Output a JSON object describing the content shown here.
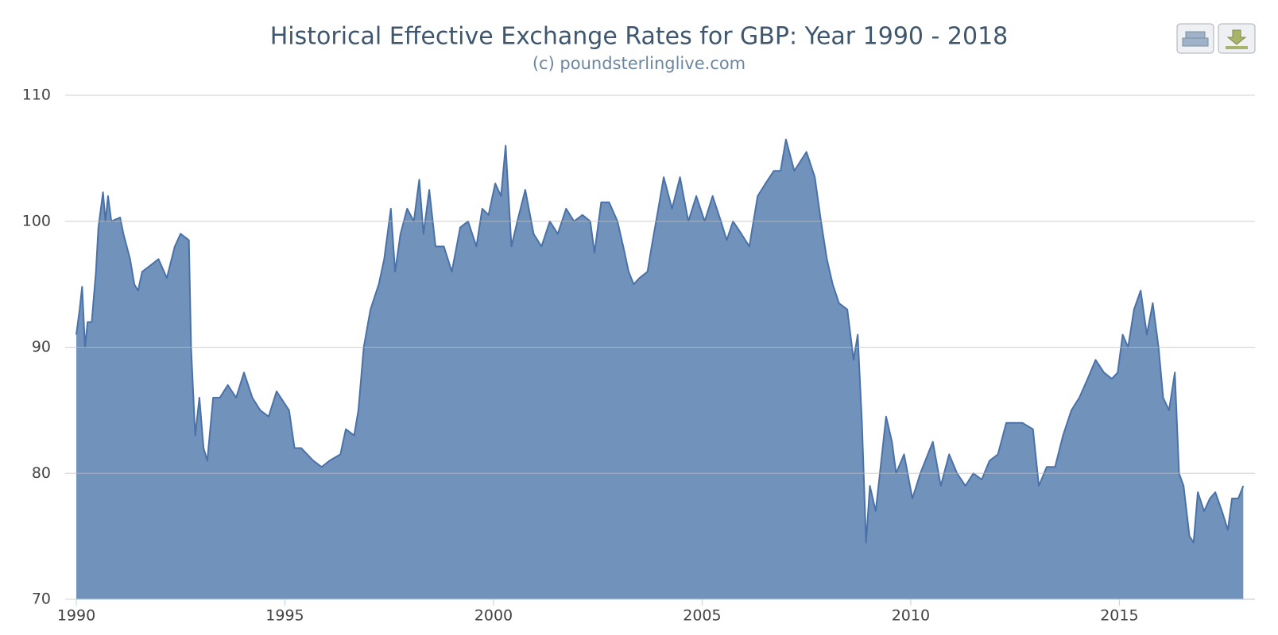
{
  "chart_data": {
    "type": "area",
    "title": "Historical Effective Exchange Rates for GBP: Year 1990 - 2018",
    "subtitle": "(c) poundsterlinglive.com",
    "color": "#7092bb",
    "line_color": "#4a72a8",
    "grid": true,
    "xlim": [
      1990,
      2018.25
    ],
    "xticks": [
      1990,
      1995,
      2000,
      2005,
      2010,
      2015
    ],
    "ylim": [
      70,
      110
    ],
    "yticks": [
      70,
      80,
      90,
      100,
      110
    ],
    "x": [
      1990.0,
      1990.08,
      1990.14,
      1990.21,
      1990.27,
      1990.37,
      1990.47,
      1990.53,
      1990.64,
      1990.7,
      1990.76,
      1990.84,
      1991.05,
      1991.13,
      1991.29,
      1991.39,
      1991.48,
      1991.58,
      1991.78,
      1991.97,
      1992.17,
      1992.36,
      1992.5,
      1992.7,
      1992.75,
      1992.85,
      1992.95,
      1993.05,
      1993.14,
      1993.28,
      1993.44,
      1993.63,
      1993.83,
      1994.02,
      1994.22,
      1994.41,
      1994.61,
      1994.8,
      1995.1,
      1995.23,
      1995.39,
      1995.68,
      1995.88,
      1996.07,
      1996.33,
      1996.46,
      1996.66,
      1996.76,
      1996.89,
      1997.05,
      1997.25,
      1997.38,
      1997.54,
      1997.64,
      1997.77,
      1997.93,
      1998.09,
      1998.22,
      1998.32,
      1998.46,
      1998.61,
      1998.81,
      1999.0,
      1999.2,
      1999.39,
      1999.59,
      1999.73,
      1999.88,
      2000.04,
      2000.18,
      2000.29,
      2000.43,
      2000.57,
      2000.76,
      2000.96,
      2001.15,
      2001.35,
      2001.54,
      2001.74,
      2001.93,
      2002.13,
      2002.32,
      2002.42,
      2002.58,
      2002.77,
      2002.97,
      2003.11,
      2003.24,
      2003.36,
      2003.5,
      2003.69,
      2003.79,
      2003.95,
      2004.08,
      2004.28,
      2004.47,
      2004.67,
      2004.86,
      2005.06,
      2005.25,
      2005.45,
      2005.59,
      2005.74,
      2005.94,
      2006.13,
      2006.33,
      2006.52,
      2006.72,
      2006.88,
      2007.01,
      2007.21,
      2007.5,
      2007.7,
      2007.85,
      2007.99,
      2008.13,
      2008.28,
      2008.48,
      2008.63,
      2008.73,
      2008.83,
      2008.93,
      2009.02,
      2009.16,
      2009.26,
      2009.41,
      2009.55,
      2009.65,
      2009.84,
      2010.04,
      2010.23,
      2010.53,
      2010.72,
      2010.92,
      2011.11,
      2011.31,
      2011.5,
      2011.7,
      2011.89,
      2012.09,
      2012.29,
      2012.48,
      2012.68,
      2012.93,
      2013.07,
      2013.26,
      2013.46,
      2013.65,
      2013.85,
      2014.04,
      2014.24,
      2014.43,
      2014.63,
      2014.82,
      2014.96,
      2015.08,
      2015.21,
      2015.35,
      2015.51,
      2015.66,
      2015.8,
      2015.94,
      2016.05,
      2016.19,
      2016.33,
      2016.43,
      2016.54,
      2016.68,
      2016.78,
      2016.88,
      2017.03,
      2017.17,
      2017.3,
      2017.46,
      2017.6,
      2017.7,
      2017.85,
      2017.97
    ],
    "values": [
      91,
      93,
      94.8,
      90,
      92,
      92,
      96,
      99.5,
      102.3,
      100,
      102,
      100,
      100.3,
      99,
      97,
      95,
      94.5,
      96,
      96.5,
      97,
      95.5,
      98,
      99,
      98.5,
      90,
      83,
      86,
      82,
      81,
      86,
      86,
      87,
      86,
      88,
      86,
      85,
      84.5,
      86.5,
      85,
      82,
      82,
      81,
      80.5,
      81,
      81.5,
      83.5,
      83,
      85,
      90,
      93,
      95,
      97,
      101,
      96,
      99,
      101,
      100,
      103.3,
      99,
      102.5,
      98,
      98,
      96,
      99.5,
      100,
      98,
      101,
      100.5,
      103,
      102,
      106,
      98,
      100,
      102.5,
      99,
      98,
      100,
      99,
      101,
      100,
      100.5,
      100,
      97.5,
      101.5,
      101.5,
      100,
      98,
      96,
      95,
      95.5,
      96,
      98,
      101,
      103.5,
      101,
      103.5,
      100,
      102,
      100,
      102,
      100,
      98.5,
      100,
      99,
      98,
      102,
      103,
      104,
      104,
      106.5,
      104,
      105.5,
      103.5,
      100,
      97,
      95,
      93.5,
      93,
      89,
      91,
      84,
      74.5,
      79,
      77,
      80,
      84.5,
      82.5,
      80,
      81.5,
      78,
      80,
      82.5,
      79,
      81.5,
      80,
      79,
      80,
      79.5,
      81,
      81.5,
      84,
      84,
      84,
      83.5,
      79,
      80.5,
      80.5,
      83,
      85,
      86,
      87.5,
      89,
      88,
      87.5,
      88,
      91,
      90,
      93,
      94.5,
      91,
      93.5,
      90,
      86,
      85,
      88,
      80,
      79,
      75,
      74.5,
      78.5,
      77,
      78,
      78.5,
      77,
      75.5,
      78,
      78,
      79
    ]
  }
}
